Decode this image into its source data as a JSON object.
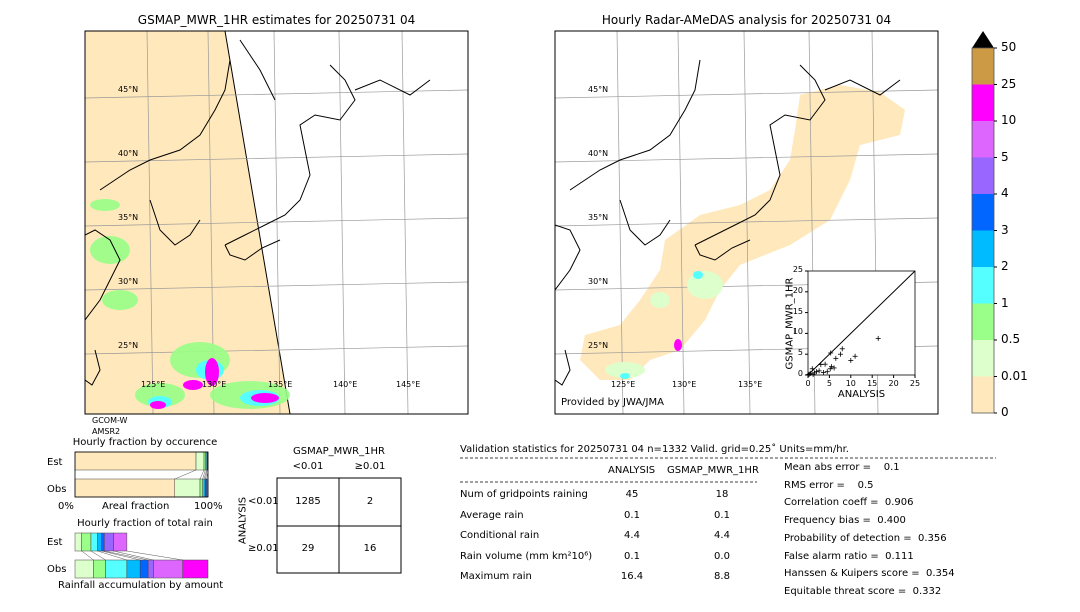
{
  "left_map": {
    "title": "GSMAP_MWR_1HR estimates for 20250731 04",
    "sensor_line1": "GCOM-W",
    "sensor_line2": "AMSR2",
    "lat_labels": [
      "45°N",
      "40°N",
      "35°N",
      "30°N",
      "25°N"
    ],
    "lon_labels": [
      "125°E",
      "130°E",
      "135°E",
      "140°E",
      "145°E"
    ]
  },
  "right_map": {
    "title": "Hourly Radar-AMeDAS analysis for 20250731 04",
    "credit": "Provided by JWA/JMA",
    "lat_labels": [
      "45°N",
      "40°N",
      "35°N",
      "30°N",
      "25°N"
    ],
    "lon_labels": [
      "125°E",
      "130°E",
      "135°E"
    ]
  },
  "colorbar": {
    "labels": [
      "50",
      "25",
      "10",
      "5",
      "4",
      "3",
      "2",
      "1",
      "0.5",
      "0.01",
      "0"
    ],
    "colors": [
      "#cc9944",
      "#ff00ff",
      "#dd66ff",
      "#9966ff",
      "#0066ff",
      "#00bbff",
      "#55ffff",
      "#99ff88",
      "#ddffcc",
      "#ffe8bb"
    ],
    "extend_color": "#000000"
  },
  "chart_data": [
    {
      "type": "scatter",
      "xlabel": "ANALYSIS",
      "ylabel": "GSMAP_MWR_1HR",
      "xlim": [
        0,
        25
      ],
      "ylim": [
        0,
        25
      ],
      "ticks": [
        "0",
        "5",
        "10",
        "15",
        "20",
        "25"
      ],
      "diagonal": true,
      "points": [
        [
          16.4,
          8.8
        ],
        [
          11,
          4.5
        ],
        [
          10,
          3.5
        ],
        [
          8,
          6.3
        ],
        [
          7.6,
          5
        ],
        [
          6.5,
          4
        ],
        [
          5.3,
          5.3
        ],
        [
          5.5,
          2
        ],
        [
          6.1,
          1.7
        ],
        [
          5.2,
          1.5
        ],
        [
          4,
          2.6
        ],
        [
          3,
          2.5
        ],
        [
          2.6,
          1
        ],
        [
          3.6,
          0.6
        ],
        [
          4.5,
          0.8
        ],
        [
          1,
          1.5
        ],
        [
          1.5,
          0.5
        ],
        [
          2,
          0.8
        ],
        [
          0.6,
          0.4
        ],
        [
          0.3,
          0.2
        ],
        [
          1.2,
          0.1
        ],
        [
          0.1,
          0.1
        ]
      ]
    },
    {
      "type": "bar",
      "title": "Hourly fraction by occurence",
      "categories": [
        "Est",
        "Obs"
      ],
      "xlabel": "Areal fraction",
      "xtick_left": "0%",
      "xtick_right": "100%",
      "series": [
        {
          "category": "Est",
          "fractions": [
            0.91,
            0.06,
            0.01,
            0.01,
            0.005,
            0.005
          ]
        },
        {
          "category": "Obs",
          "fractions": [
            0.75,
            0.19,
            0.02,
            0.01,
            0.01,
            0.01,
            0.01
          ]
        }
      ]
    },
    {
      "type": "bar",
      "title": "Hourly fraction of total rain",
      "categories": [
        "Est",
        "Obs"
      ],
      "xlabel": "Rainfall accumulation by amount",
      "series": [
        {
          "category": "Est",
          "fractions": [
            0.05,
            0.07,
            0.05,
            0.03,
            0.02,
            0.07,
            0.1
          ]
        },
        {
          "category": "Obs",
          "fractions": [
            0.14,
            0.09,
            0.16,
            0.1,
            0.06,
            0.04,
            0.22,
            0.19
          ]
        }
      ]
    }
  ],
  "contingency": {
    "col_title": "GSMAP_MWR_1HR",
    "col_labels": [
      "<0.01",
      "≥0.01"
    ],
    "row_title": "ANALYSIS",
    "row_labels": [
      "<0.01",
      "≥0.01"
    ],
    "cells": [
      [
        "1285",
        "2"
      ],
      [
        "29",
        "16"
      ]
    ]
  },
  "stats": {
    "header": "Validation statistics for 20250731 04  n=1332 Valid. grid=0.25˚ Units=mm/hr.",
    "col_analysis": "ANALYSIS",
    "col_gsmap": "GSMAP_MWR_1HR",
    "rows": [
      {
        "label": "Num of gridpoints raining",
        "analysis": "45",
        "gsmap": "18"
      },
      {
        "label": "Average rain",
        "analysis": "0.1",
        "gsmap": "0.1"
      },
      {
        "label": "Conditional rain",
        "analysis": "4.4",
        "gsmap": "4.4"
      },
      {
        "label": "Rain volume (mm km²10⁶)",
        "analysis": "0.1",
        "gsmap": "0.0"
      },
      {
        "label": "Maximum rain",
        "analysis": "16.4",
        "gsmap": "8.8"
      }
    ],
    "scores": [
      "Mean abs error =    0.1",
      "RMS error =    0.5",
      "Correlation coeff =  0.906",
      "Frequency bias =  0.400",
      "Probability of detection =  0.356",
      "False alarm ratio =  0.111",
      "Hanssen & Kuipers score =  0.354",
      "Equitable threat score =  0.332"
    ]
  }
}
